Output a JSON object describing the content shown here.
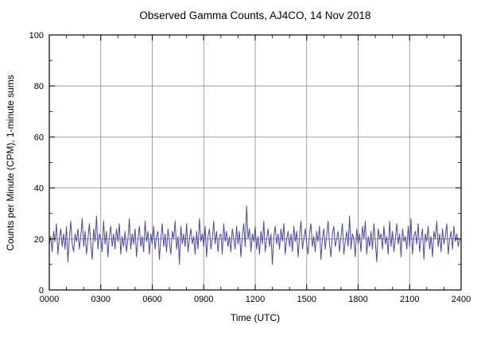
{
  "chart_data": {
    "type": "line",
    "title": "Observed Gamma Counts, AJ4CO, 14 Nov 2018",
    "xlabel": "Time (UTC)",
    "ylabel": "Counts per Minute (CPM), 1-minute sums",
    "series_name": "observed gamma counts",
    "xlim_minutes": [
      0,
      1440
    ],
    "ylim": [
      0,
      100
    ],
    "x_tick_minutes": [
      0,
      180,
      360,
      540,
      720,
      900,
      1080,
      1260,
      1440
    ],
    "x_tick_labels": [
      "0000",
      "0300",
      "0600",
      "0900",
      "1200",
      "1500",
      "1800",
      "2100",
      "2400"
    ],
    "y_ticks": [
      0,
      20,
      40,
      60,
      80,
      100
    ],
    "x_minor_step_minutes": 60,
    "y_minor_step": 10,
    "grid": true,
    "legend": "none",
    "line_color": "#4a4a9e",
    "grid_color": "#8a8a8a",
    "x_step_minutes": 5,
    "summary": {
      "mean_cpm": 19,
      "min_cpm": 10,
      "max_cpm": 33
    },
    "values": [
      18,
      21,
      15,
      23,
      19,
      26,
      14,
      20,
      24,
      17,
      22,
      16,
      25,
      11,
      20,
      27,
      18,
      15,
      22,
      19,
      24,
      16,
      21,
      28,
      17,
      23,
      14,
      20,
      26,
      18,
      12,
      24,
      19,
      29,
      16,
      22,
      20,
      15,
      27,
      18,
      23,
      13,
      21,
      25,
      17,
      22,
      16,
      24,
      19,
      26,
      14,
      21,
      17,
      23,
      15,
      20,
      28,
      16,
      22,
      18,
      24,
      13,
      20,
      25,
      17,
      21,
      15,
      27,
      19,
      23,
      14,
      22,
      18,
      25,
      16,
      21,
      23,
      12,
      20,
      26,
      17,
      22,
      15,
      24,
      19,
      14,
      23,
      20,
      27,
      16,
      21,
      10,
      25,
      18,
      22,
      17,
      26,
      15,
      20,
      24,
      18,
      21,
      14,
      23,
      16,
      28,
      19,
      22,
      17,
      25,
      13,
      21,
      24,
      16,
      20,
      27,
      18,
      23,
      15,
      21,
      22,
      14,
      26,
      19,
      23,
      17,
      21,
      15,
      24,
      20,
      16,
      25,
      18,
      23,
      13,
      21,
      26,
      17,
      33,
      20,
      24,
      15,
      22,
      19,
      25,
      16,
      21,
      14,
      23,
      18,
      27,
      15,
      20,
      24,
      17,
      22,
      10,
      21,
      25,
      18,
      22,
      16,
      24,
      19,
      26,
      14,
      20,
      23,
      17,
      22,
      15,
      25,
      19,
      23,
      13,
      21,
      27,
      16,
      20,
      24,
      18,
      14,
      22,
      26,
      17,
      21,
      15,
      23,
      19,
      25,
      12,
      20,
      24,
      16,
      21,
      27,
      18,
      13,
      22,
      25,
      17,
      20,
      23,
      15,
      21,
      26,
      14,
      19,
      23,
      17,
      29,
      16,
      22,
      20,
      13,
      24,
      18,
      22,
      15,
      25,
      20,
      27,
      14,
      21,
      17,
      23,
      16,
      26,
      19,
      11,
      24,
      20,
      22,
      16,
      25,
      18,
      21,
      14,
      27,
      17,
      23,
      15,
      20,
      26,
      18,
      22,
      13,
      24,
      19,
      21,
      16,
      25,
      17,
      28,
      14,
      21,
      23,
      18,
      26,
      15,
      20,
      24,
      12,
      22,
      19,
      25,
      16,
      21,
      13,
      23,
      20,
      27,
      17,
      22,
      15,
      24,
      18,
      21,
      26,
      14,
      20,
      23,
      16,
      25,
      19,
      22,
      17,
      20
    ]
  }
}
